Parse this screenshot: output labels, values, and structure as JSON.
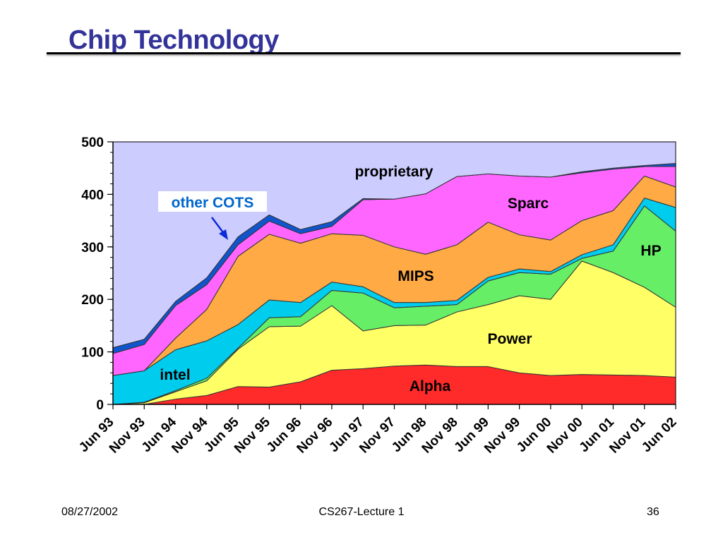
{
  "slide": {
    "title": "Chip Technology",
    "footer": {
      "date": "08/27/2002",
      "course": "CS267-Lecture 1",
      "page": "36"
    }
  },
  "chart_data": {
    "type": "area",
    "stacked": true,
    "title": "",
    "xlabel": "",
    "ylabel": "",
    "ylim": [
      0,
      500
    ],
    "yticks": [
      0,
      100,
      200,
      300,
      400,
      500
    ],
    "grid": false,
    "legend": "none",
    "categories": [
      "Jun 93",
      "Nov 93",
      "Jun 94",
      "Nov 94",
      "Jun 95",
      "Nov 95",
      "Jun 96",
      "Nov 96",
      "Jun 97",
      "Nov 97",
      "Jun 98",
      "Nov 98",
      "Jun 99",
      "Nov 99",
      "Jun 00",
      "Nov 00",
      "Jun 01",
      "Nov 01",
      "Jun 02"
    ],
    "plot_background": "#ccccff",
    "series": [
      {
        "name": "Alpha",
        "color": "#ff2a2a",
        "values": [
          0,
          0,
          10,
          17,
          34,
          33,
          43,
          65,
          68,
          73,
          75,
          72,
          72,
          60,
          55,
          57,
          56,
          55,
          52
        ]
      },
      {
        "name": "Power",
        "color": "#ffff66",
        "values": [
          0,
          3,
          14,
          28,
          71,
          115,
          106,
          123,
          72,
          77,
          76,
          104,
          118,
          147,
          145,
          216,
          195,
          168,
          133
        ]
      },
      {
        "name": "",
        "color": "#66ee66",
        "values": [
          0,
          1,
          2,
          5,
          2,
          17,
          18,
          29,
          72,
          34,
          36,
          14,
          45,
          44,
          48,
          5,
          41,
          155,
          145
        ]
      },
      {
        "name": "intel",
        "color": "#00ccee",
        "values": [
          55,
          60,
          78,
          71,
          45,
          34,
          27,
          16,
          12,
          10,
          7,
          8,
          7,
          7,
          5,
          7,
          12,
          15,
          45
        ]
      },
      {
        "name": "MIPS",
        "color": "#ffaa44",
        "values": [
          0,
          0,
          22,
          60,
          130,
          125,
          113,
          92,
          98,
          106,
          92,
          106,
          105,
          65,
          60,
          65,
          65,
          42,
          39
        ]
      },
      {
        "name": "Sparc",
        "color": "#ff66ff",
        "values": [
          42,
          50,
          62,
          47,
          22,
          25,
          18,
          14,
          68,
          91,
          115,
          130,
          92,
          112,
          120,
          91,
          79,
          18,
          39
        ]
      },
      {
        "name": "other COTS",
        "color": "#1155cc",
        "values": [
          11,
          10,
          8,
          13,
          15,
          12,
          8,
          9,
          2,
          0,
          0,
          0,
          0,
          0,
          0,
          2,
          2,
          2,
          6
        ]
      },
      {
        "name": "proprietary",
        "color": "#ccccff",
        "values": [
          392,
          376,
          304,
          259,
          181,
          139,
          167,
          152,
          108,
          109,
          99,
          66,
          61,
          65,
          67,
          57,
          50,
          45,
          41
        ]
      }
    ],
    "labels": {
      "proprietary": "proprietary",
      "sparc": "Sparc",
      "hp": "HP",
      "mips": "MIPS",
      "power": "Power",
      "intel": "intel",
      "alpha": "Alpha",
      "other_cots": "other COTS"
    }
  }
}
